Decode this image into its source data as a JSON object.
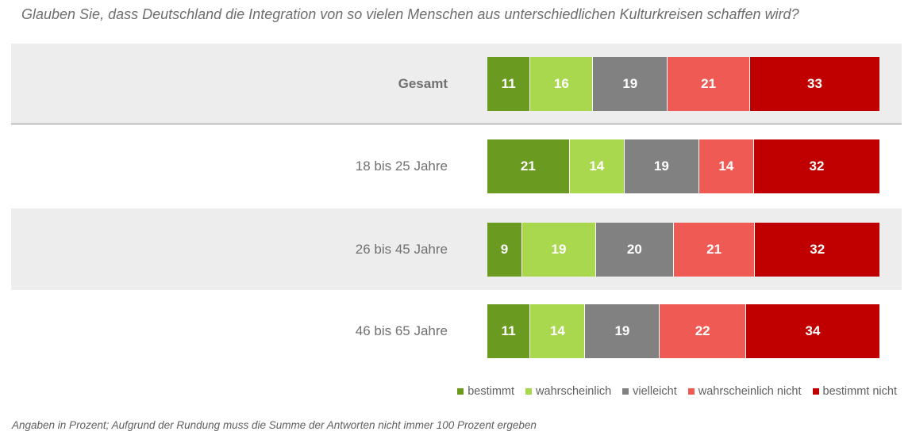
{
  "title": "Glauben Sie, dass Deutschland die Integration von so vielen Menschen aus unterschiedlichen Kulturkreisen schaffen wird?",
  "footnote": "Angaben in Prozent; Aufgrund der Rundung muss die Summe der Antworten nicht immer 100 Prozent ergeben",
  "colors": {
    "bestimmt": "#6a9a1f",
    "wahrscheinlich": "#a9d84f",
    "vielleicht": "#818181",
    "wahrscheinlich_nicht": "#ef5a55",
    "bestimmt_nicht": "#c00000"
  },
  "chart_data": {
    "type": "bar",
    "stacked": true,
    "orientation": "horizontal",
    "title": "Glauben Sie, dass Deutschland die Integration von so vielen Menschen aus unterschiedlichen Kulturkreisen schaffen wird?",
    "categories": [
      "Gesamt",
      "18 bis 25 Jahre",
      "26 bis 45 Jahre",
      "46 bis 65 Jahre"
    ],
    "series": [
      {
        "name": "bestimmt",
        "values": [
          11,
          21,
          9,
          11
        ]
      },
      {
        "name": "wahrscheinlich",
        "values": [
          16,
          14,
          19,
          14
        ]
      },
      {
        "name": "vielleicht",
        "values": [
          19,
          19,
          20,
          19
        ]
      },
      {
        "name": "wahrscheinlich nicht",
        "values": [
          21,
          14,
          21,
          22
        ]
      },
      {
        "name": "bestimmt nicht",
        "values": [
          33,
          32,
          32,
          34
        ]
      }
    ],
    "legend_position": "bottom-right",
    "unit": "Prozent"
  }
}
